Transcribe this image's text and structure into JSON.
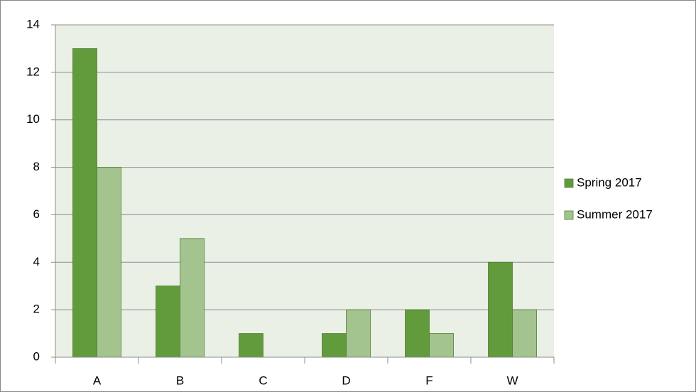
{
  "chart_data": {
    "type": "bar",
    "categories": [
      "A",
      "B",
      "C",
      "D",
      "F",
      "W"
    ],
    "series": [
      {
        "name": "Spring 2017",
        "color": "#629b3c",
        "values": [
          13,
          3,
          1,
          1,
          2,
          4
        ]
      },
      {
        "name": "Summer 2017",
        "color": "#a3c48e",
        "values": [
          8,
          5,
          0,
          2,
          1,
          2
        ]
      }
    ],
    "ylim": [
      0,
      14
    ],
    "yticks": [
      0,
      2,
      4,
      6,
      8,
      10,
      12,
      14
    ],
    "grid": true,
    "legend": "right"
  }
}
